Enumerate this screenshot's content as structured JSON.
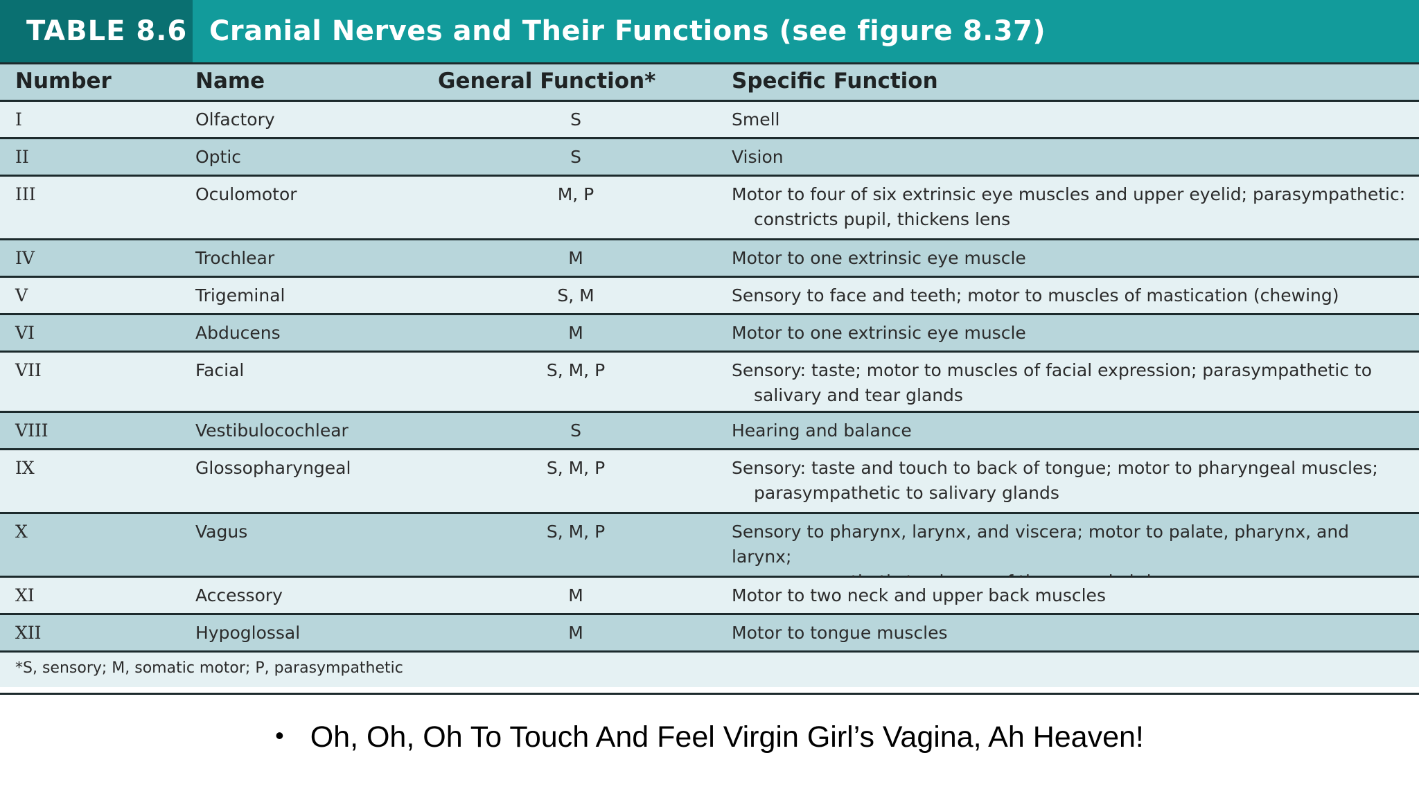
{
  "title": {
    "tag": "TABLE 8.6",
    "text": "Cranial Nerves and Their Functions (see figure 8.37)"
  },
  "columns": [
    "Number",
    "Name",
    "General Function*",
    "Specific Function"
  ],
  "rows": [
    {
      "number": "I",
      "name": "Olfactory",
      "general": "S",
      "specific": "Smell",
      "specific2": ""
    },
    {
      "number": "II",
      "name": "Optic",
      "general": "S",
      "specific": "Vision",
      "specific2": ""
    },
    {
      "number": "III",
      "name": "Oculomotor",
      "general": "M, P",
      "specific": "Motor to four of six extrinsic eye muscles and upper eyelid; parasympathetic:",
      "specific2": "constricts pupil, thickens lens"
    },
    {
      "number": "IV",
      "name": "Trochlear",
      "general": "M",
      "specific": "Motor to one extrinsic eye muscle",
      "specific2": ""
    },
    {
      "number": "V",
      "name": "Trigeminal",
      "general": "S, M",
      "specific": "Sensory to face and teeth; motor to muscles of mastication (chewing)",
      "specific2": ""
    },
    {
      "number": "VI",
      "name": "Abducens",
      "general": "M",
      "specific": "Motor to one extrinsic eye muscle",
      "specific2": ""
    },
    {
      "number": "VII",
      "name": "Facial",
      "general": "S, M, P",
      "specific": "Sensory: taste; motor to muscles of facial expression; parasympathetic to",
      "specific2": "salivary and tear glands"
    },
    {
      "number": "VIII",
      "name": "Vestibulocochlear",
      "general": "S",
      "specific": "Hearing and balance",
      "specific2": ""
    },
    {
      "number": "IX",
      "name": "Glossopharyngeal",
      "general": "S, M, P",
      "specific": "Sensory: taste and touch to back of tongue; motor to pharyngeal muscles;",
      "specific2": "parasympathetic to salivary glands"
    },
    {
      "number": "X",
      "name": "Vagus",
      "general": "S, M, P",
      "specific": "Sensory to pharynx, larynx, and viscera; motor to palate, pharynx, and larynx;",
      "specific2": "parasympathetic to viscera of thorax and abdomen"
    },
    {
      "number": "XI",
      "name": "Accessory",
      "general": "M",
      "specific": "Motor to two neck and upper back muscles",
      "specific2": ""
    },
    {
      "number": "XII",
      "name": "Hypoglossal",
      "general": "M",
      "specific": "Motor to tongue muscles",
      "specific2": ""
    }
  ],
  "footnote": "*S, sensory; M, somatic motor; P, parasympathetic",
  "bullet": {
    "symbol": "•",
    "text": "Oh, Oh, Oh To Touch And Feel Virgin Girl’s Vagina, Ah Heaven!"
  }
}
